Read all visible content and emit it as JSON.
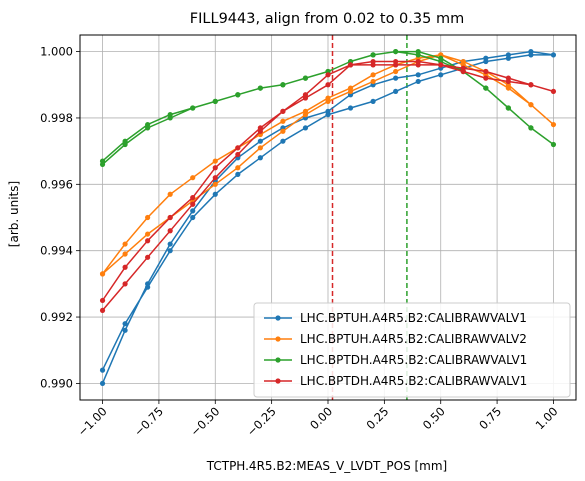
{
  "chart_data": {
    "type": "line",
    "title": "FILL9443, align from 0.02 to 0.35 mm",
    "xlabel": "TCTPH.4R5.B2:MEAS_V_LVDT_POS [mm]",
    "ylabel": "[arb. units]",
    "xlim": [
      -1.1,
      1.1
    ],
    "ylim": [
      0.9895,
      1.0005
    ],
    "x_ticks": [
      -1.0,
      -0.75,
      -0.5,
      -0.25,
      0.0,
      0.25,
      0.5,
      0.75,
      1.0
    ],
    "x_tick_labels": [
      "−1.00",
      "−0.75",
      "−0.50",
      "−0.25",
      "0.00",
      "0.25",
      "0.50",
      "0.75",
      "1.00"
    ],
    "y_ticks": [
      0.99,
      0.992,
      0.994,
      0.996,
      0.998,
      1.0
    ],
    "y_tick_labels": [
      "0.990",
      "0.992",
      "0.994",
      "0.996",
      "0.998",
      "1.000"
    ],
    "grid": true,
    "legend_position": "lower-right",
    "vlines": [
      {
        "x": 0.02,
        "color": "#d62728",
        "style": "dashed"
      },
      {
        "x": 0.35,
        "color": "#2ca02c",
        "style": "dashed"
      }
    ],
    "series": [
      {
        "name": "LHC.BPTUH.A4R5.B2:CALIBRAWVALV1",
        "color": "#1f77b4",
        "x": [
          -1.0,
          -0.9,
          -0.8,
          -0.7,
          -0.6,
          -0.5,
          -0.4,
          -0.3,
          -0.2,
          -0.1,
          0.0,
          0.1,
          0.2,
          0.3,
          0.4,
          0.5,
          0.6,
          0.7,
          0.8,
          0.9,
          1.0,
          0.9,
          0.8,
          0.7,
          0.6,
          0.5,
          0.4,
          0.3,
          0.2,
          0.1,
          0.0,
          -0.1,
          -0.2,
          -0.3,
          -0.4,
          -0.5,
          -0.6,
          -0.7,
          -0.8,
          -0.9,
          -1.0
        ],
        "y": [
          0.99,
          0.9916,
          0.993,
          0.9942,
          0.9952,
          0.9961,
          0.9968,
          0.9973,
          0.9977,
          0.998,
          0.9982,
          0.9987,
          0.999,
          0.9992,
          0.9993,
          0.9995,
          0.9997,
          0.9998,
          0.9999,
          1.0,
          0.9999,
          0.9999,
          0.9998,
          0.9997,
          0.9995,
          0.9993,
          0.9991,
          0.9988,
          0.9985,
          0.9983,
          0.9981,
          0.9977,
          0.9973,
          0.9968,
          0.9963,
          0.9957,
          0.995,
          0.994,
          0.9929,
          0.9918,
          0.9904
        ]
      },
      {
        "name": "LHC.BPTUH.A4R5.B2:CALIBRAWVALV2",
        "color": "#ff7f0e",
        "x": [
          -1.0,
          -0.9,
          -0.8,
          -0.7,
          -0.6,
          -0.5,
          -0.4,
          -0.3,
          -0.2,
          -0.1,
          0.0,
          0.1,
          0.2,
          0.3,
          0.4,
          0.5,
          0.6,
          0.7,
          0.8,
          0.9,
          1.0,
          0.9,
          0.8,
          0.7,
          0.6,
          0.5,
          0.4,
          0.3,
          0.2,
          0.1,
          0.0,
          -0.1,
          -0.2,
          -0.3,
          -0.4,
          -0.5,
          -0.6,
          -0.7,
          -0.8,
          -0.9,
          -1.0
        ],
        "y": [
          0.9933,
          0.9942,
          0.995,
          0.9957,
          0.9962,
          0.9967,
          0.9971,
          0.9975,
          0.9979,
          0.9982,
          0.9986,
          0.9989,
          0.9993,
          0.9996,
          0.9998,
          0.9999,
          0.9996,
          0.9993,
          0.9989,
          0.9984,
          0.9978,
          0.9984,
          0.999,
          0.9994,
          0.9997,
          0.9999,
          0.9997,
          0.9994,
          0.9991,
          0.9988,
          0.9985,
          0.9981,
          0.9976,
          0.9971,
          0.9965,
          0.996,
          0.9955,
          0.995,
          0.9945,
          0.9939,
          0.9933
        ]
      },
      {
        "name": "LHC.BPTDH.A4R5.B2:CALIBRAWVALV1",
        "color": "#2ca02c",
        "x": [
          -1.0,
          -0.9,
          -0.8,
          -0.7,
          -0.6,
          -0.5,
          -0.4,
          -0.3,
          -0.2,
          -0.1,
          0.0,
          0.1,
          0.2,
          0.3,
          0.4,
          0.5,
          0.6,
          0.7,
          0.8,
          0.9,
          1.0,
          0.9,
          0.8,
          0.7,
          0.6,
          0.5,
          0.4,
          0.3,
          0.2,
          0.1,
          0.0,
          -0.1,
          -0.2,
          -0.3,
          -0.4,
          -0.5,
          -0.6,
          -0.7,
          -0.8,
          -0.9,
          -1.0
        ],
        "y": [
          0.9967,
          0.9973,
          0.9978,
          0.9981,
          0.9983,
          0.9985,
          0.9987,
          0.9989,
          0.999,
          0.9992,
          0.9994,
          0.9997,
          0.9999,
          1.0,
          1.0,
          0.9998,
          0.9994,
          0.9989,
          0.9983,
          0.9977,
          0.9972,
          0.9977,
          0.9983,
          0.9989,
          0.9994,
          0.9997,
          0.9999,
          1.0,
          0.9999,
          0.9997,
          0.9994,
          0.9992,
          0.999,
          0.9989,
          0.9987,
          0.9985,
          0.9983,
          0.998,
          0.9977,
          0.9972,
          0.9966
        ]
      },
      {
        "name": "LHC.BPTDH.A4R5.B2:CALIBRAWVALV1",
        "color": "#d62728",
        "x": [
          -1.0,
          -0.9,
          -0.8,
          -0.7,
          -0.6,
          -0.5,
          -0.4,
          -0.3,
          -0.2,
          -0.1,
          0.0,
          0.1,
          0.2,
          0.3,
          0.4,
          0.5,
          0.6,
          0.7,
          0.8,
          0.9,
          1.0,
          0.9,
          0.8,
          0.7,
          0.6,
          0.5,
          0.4,
          0.3,
          0.2,
          0.1,
          0.0,
          -0.1,
          -0.2,
          -0.3,
          -0.4,
          -0.5,
          -0.6,
          -0.7,
          -0.8,
          -0.9,
          -1.0
        ],
        "y": [
          0.9925,
          0.9935,
          0.9943,
          0.995,
          0.9956,
          0.9965,
          0.9971,
          0.9977,
          0.9982,
          0.9986,
          0.999,
          0.9996,
          0.9996,
          0.9996,
          0.9996,
          0.9996,
          0.9994,
          0.9992,
          0.9991,
          0.999,
          0.9988,
          0.999,
          0.9992,
          0.9994,
          0.9995,
          0.9996,
          0.9997,
          0.9997,
          0.9997,
          0.9996,
          0.9993,
          0.9987,
          0.9982,
          0.9976,
          0.9969,
          0.9962,
          0.9954,
          0.9946,
          0.9938,
          0.993,
          0.9922
        ]
      }
    ]
  }
}
